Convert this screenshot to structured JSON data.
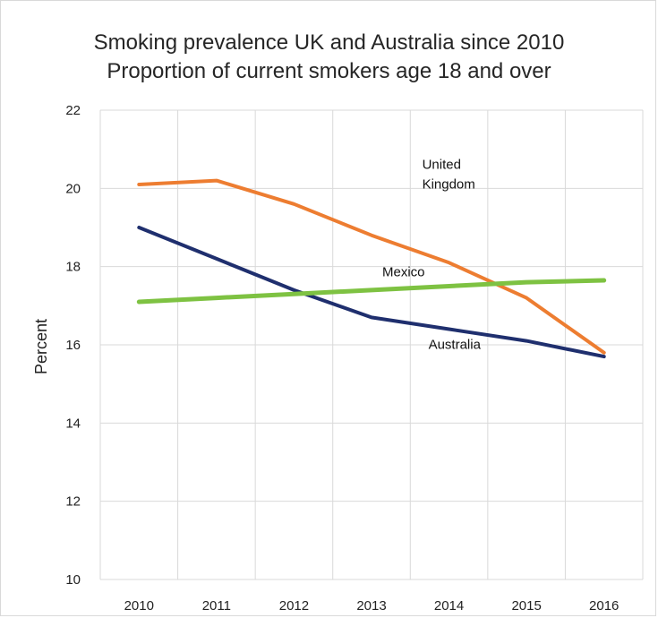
{
  "chart_data": {
    "type": "line",
    "title": "Smoking prevalence UK and Australia since 2010",
    "subtitle": "Proportion of current smokers age 18 and over",
    "xlabel": "",
    "ylabel": "Percent",
    "categories": [
      "2010",
      "2011",
      "2012",
      "2013",
      "2014",
      "2015",
      "2016"
    ],
    "ylim": [
      10,
      22
    ],
    "yticks": [
      10,
      12,
      14,
      16,
      18,
      20,
      22
    ],
    "grid": true,
    "legend": "inline labels",
    "series": [
      {
        "name": "United Kingdom",
        "label_lines": [
          "United",
          "Kingdom"
        ],
        "color": "#ed7d31",
        "values": [
          20.1,
          20.2,
          19.6,
          18.8,
          18.1,
          17.2,
          15.8
        ]
      },
      {
        "name": "Australia",
        "label_lines": [
          "Australia"
        ],
        "color": "#1f2f6e",
        "values": [
          19.0,
          18.2,
          17.4,
          16.7,
          16.4,
          16.1,
          15.7
        ]
      },
      {
        "name": "Mexico",
        "label_lines": [
          "Mexico"
        ],
        "color": "#7ec242",
        "values": [
          17.1,
          17.2,
          17.3,
          17.4,
          17.5,
          17.6,
          17.65
        ]
      }
    ]
  }
}
